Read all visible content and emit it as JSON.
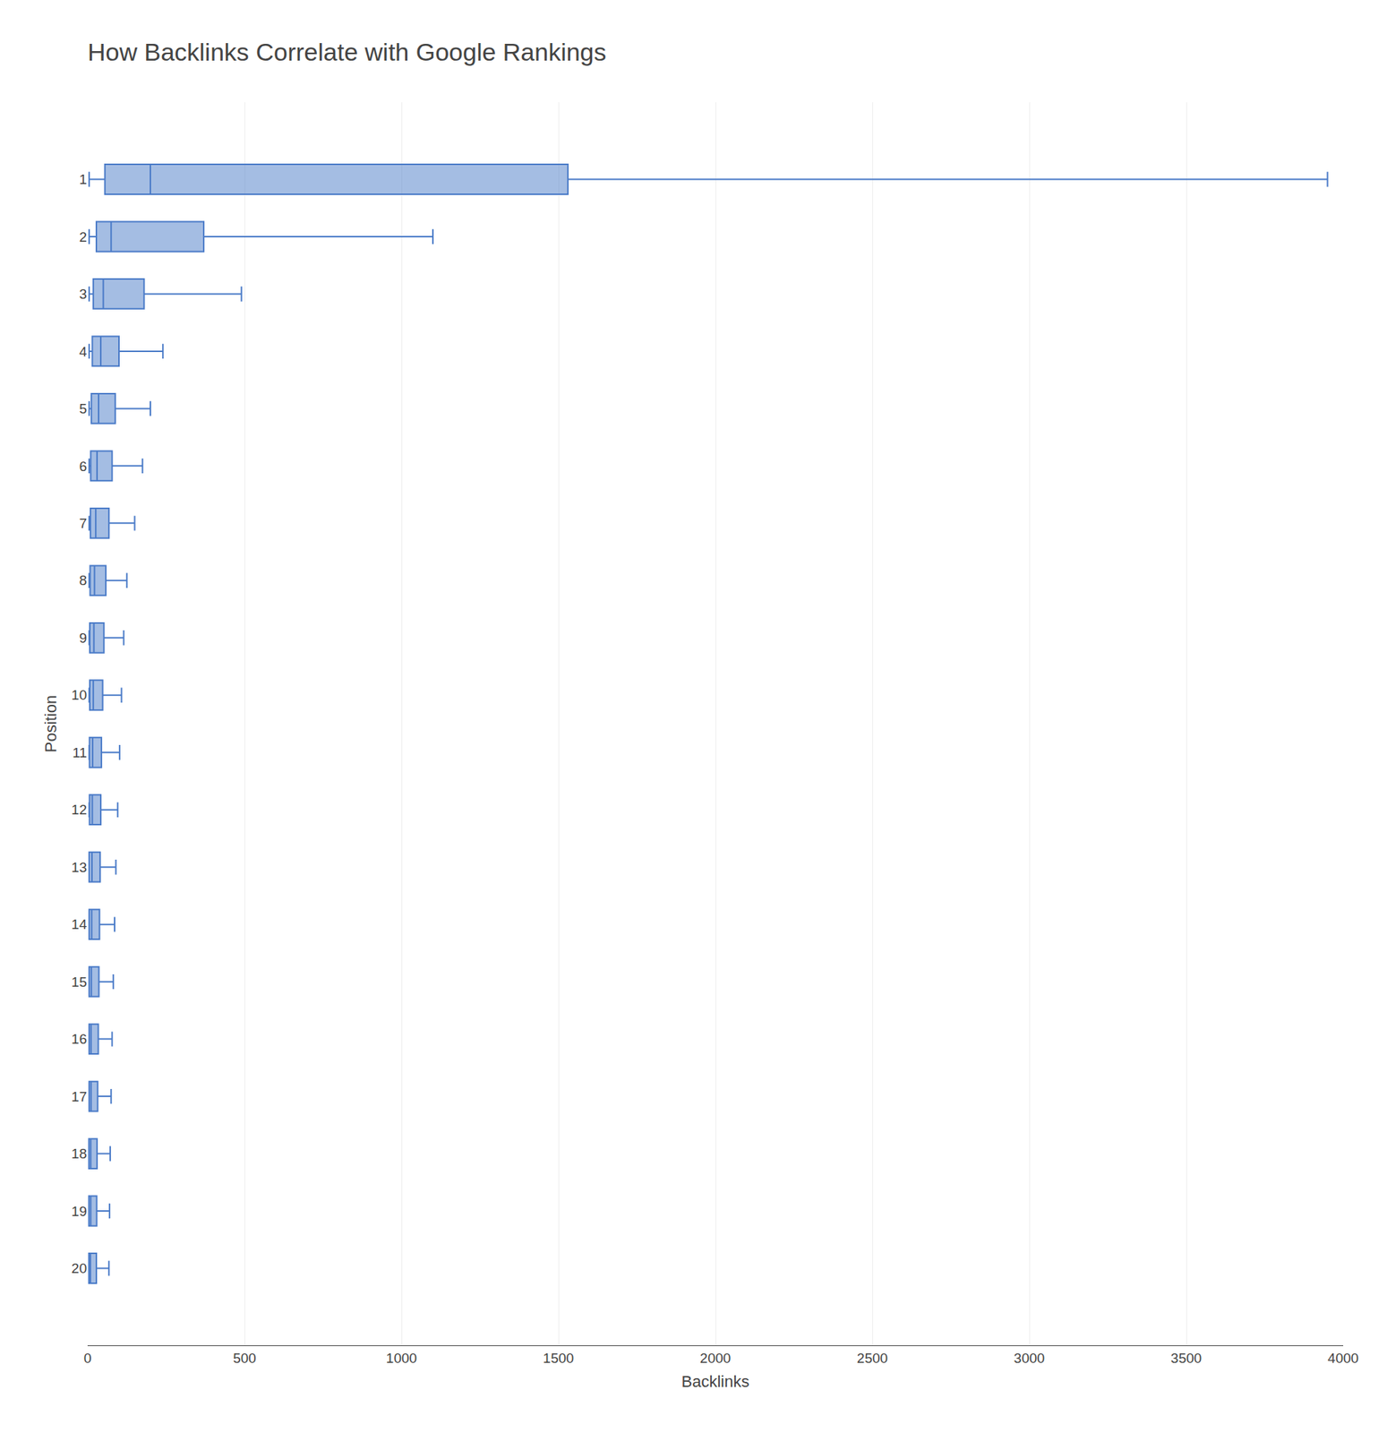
{
  "chart_data": {
    "type": "box",
    "orientation": "horizontal",
    "title": "How Backlinks Correlate with Google Rankings",
    "xlabel": "Backlinks",
    "ylabel": "Position",
    "categories": [
      1,
      2,
      3,
      4,
      5,
      6,
      7,
      8,
      9,
      10,
      11,
      12,
      13,
      14,
      15,
      16,
      17,
      18,
      19,
      20
    ],
    "whislo": [
      5,
      5,
      5,
      5,
      5,
      5,
      5,
      5,
      5,
      5,
      5,
      5,
      5,
      5,
      5,
      5,
      5,
      5,
      5,
      5
    ],
    "q1": [
      55,
      28,
      18,
      15,
      12,
      10,
      9,
      8,
      7,
      7,
      6,
      6,
      5,
      5,
      5,
      5,
      5,
      4,
      4,
      4
    ],
    "median": [
      200,
      75,
      50,
      42,
      35,
      30,
      26,
      22,
      20,
      18,
      16,
      15,
      14,
      13,
      12,
      11,
      11,
      10,
      10,
      9
    ],
    "q3": [
      1530,
      370,
      180,
      100,
      88,
      78,
      68,
      58,
      52,
      48,
      44,
      42,
      40,
      38,
      36,
      34,
      32,
      30,
      29,
      28
    ],
    "whishi": [
      3950,
      1100,
      490,
      240,
      200,
      175,
      150,
      125,
      115,
      108,
      102,
      96,
      90,
      86,
      82,
      78,
      75,
      72,
      70,
      68
    ],
    "color": "#4a7bc8",
    "xlim": [
      0,
      4000
    ],
    "xticks": [
      0,
      500,
      1000,
      1500,
      2000,
      2500,
      3000,
      3500,
      4000
    ],
    "grid": true
  }
}
